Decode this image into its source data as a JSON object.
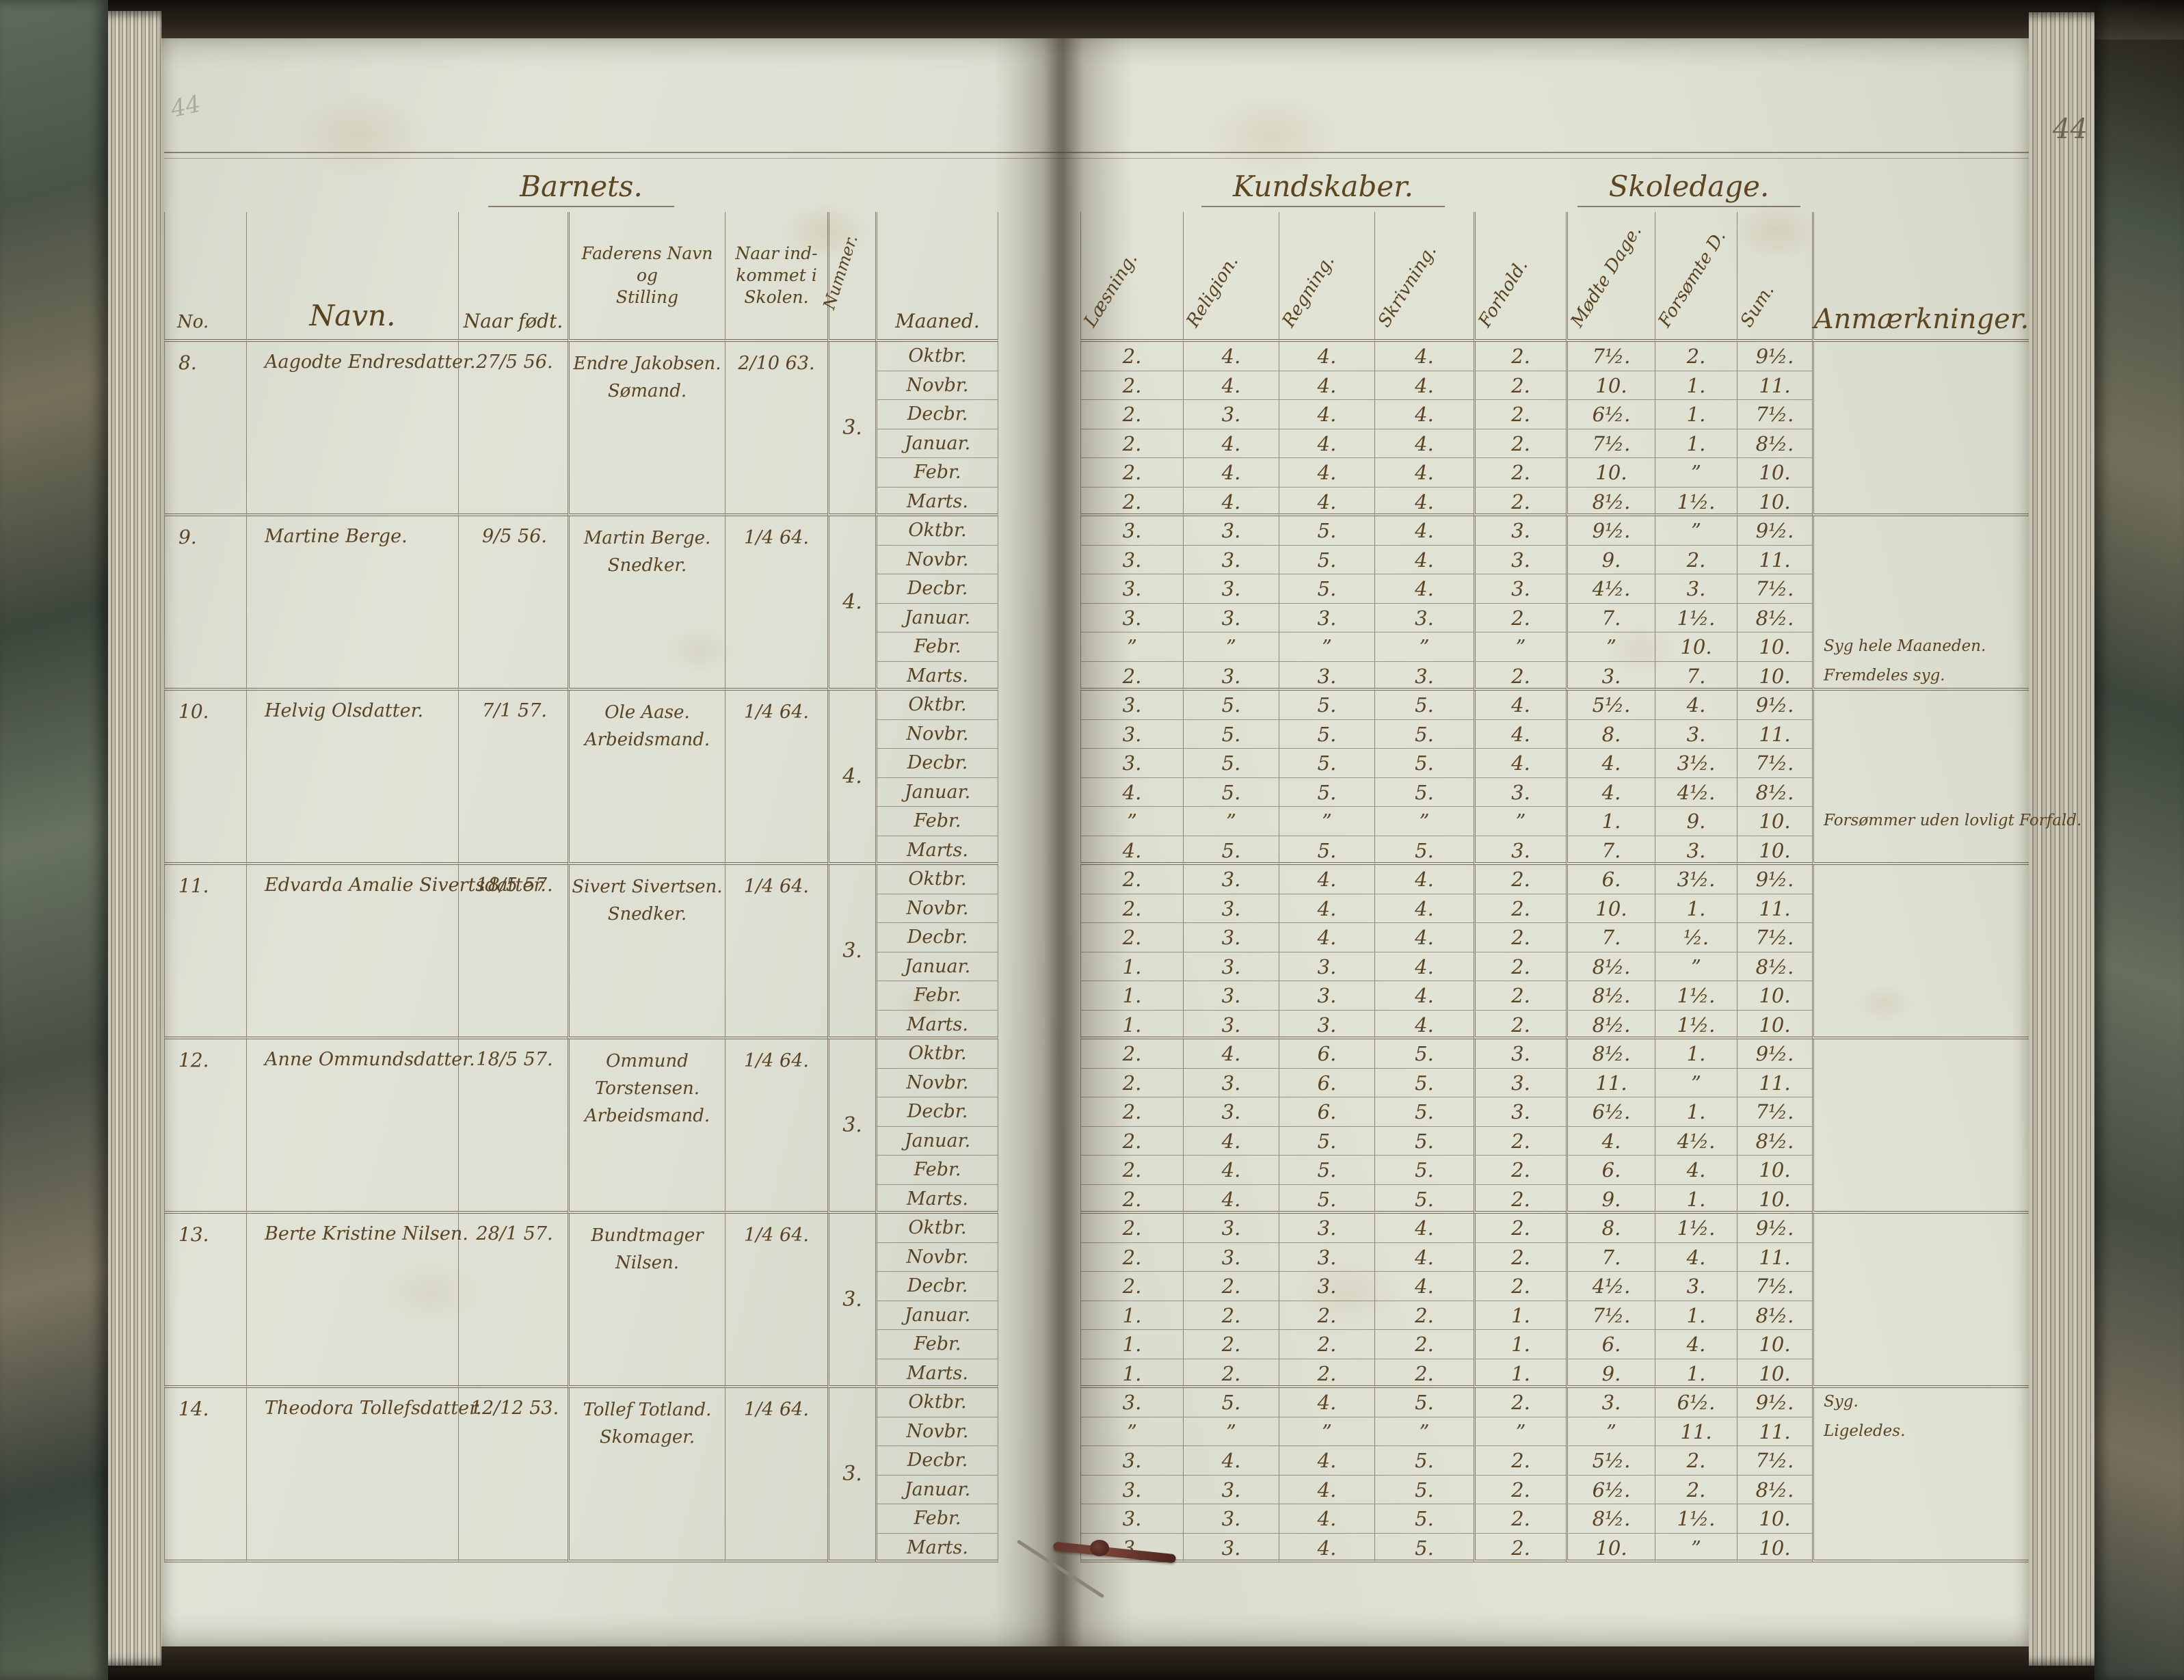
{
  "page": {
    "right_number": "44",
    "left_corner_mark": "44"
  },
  "headers": {
    "left_group": "Barnets.",
    "knowledge_group": "Kundskaber.",
    "schooldays_group": "Skoledage.",
    "remarks_title": "Anmærkninger.",
    "col_no": "No.",
    "col_name": "Navn.",
    "col_born": "Naar født.",
    "col_father_lines": [
      "Faderens Navn",
      "og",
      "Stilling"
    ],
    "col_admitted_lines": [
      "Naar ind-",
      "kommet i",
      "Skolen."
    ],
    "col_number": "Nummer.",
    "col_month": "Maaned.",
    "subjects": [
      "Læsning.",
      "Religion.",
      "Regning.",
      "Skrivning.",
      "Forhold."
    ],
    "schooldays": [
      "Mødte Dage.",
      "Forsømte D.",
      "Sum."
    ]
  },
  "months": [
    "Oktbr.",
    "Novbr.",
    "Decbr.",
    "Januar.",
    "Febr.",
    "Marts."
  ],
  "students": [
    {
      "no": "8.",
      "name": "Aagodte Endresdatter.",
      "born": "27/5 56.",
      "father": [
        "Endre Jakobsen.",
        "Sømand."
      ],
      "admitted": "2/10 63.",
      "number": "3.",
      "rows": [
        [
          "2.",
          "4.",
          "4.",
          "4.",
          "2.",
          "7½.",
          "2.",
          "9½."
        ],
        [
          "2.",
          "4.",
          "4.",
          "4.",
          "2.",
          "10.",
          "1.",
          "11."
        ],
        [
          "2.",
          "3.",
          "4.",
          "4.",
          "2.",
          "6½.",
          "1.",
          "7½."
        ],
        [
          "2.",
          "4.",
          "4.",
          "4.",
          "2.",
          "7½.",
          "1.",
          "8½."
        ],
        [
          "2.",
          "4.",
          "4.",
          "4.",
          "2.",
          "10.",
          "”",
          "10."
        ],
        [
          "2.",
          "4.",
          "4.",
          "4.",
          "2.",
          "8½.",
          "1½.",
          "10."
        ]
      ],
      "remarks": [
        "",
        "",
        "",
        "",
        "",
        ""
      ]
    },
    {
      "no": "9.",
      "name": "Martine Berge.",
      "born": "9/5 56.",
      "father": [
        "Martin Berge.",
        "Snedker."
      ],
      "admitted": "1/4 64.",
      "number": "4.",
      "rows": [
        [
          "3.",
          "3.",
          "5.",
          "4.",
          "3.",
          "9½.",
          "”",
          "9½."
        ],
        [
          "3.",
          "3.",
          "5.",
          "4.",
          "3.",
          "9.",
          "2.",
          "11."
        ],
        [
          "3.",
          "3.",
          "5.",
          "4.",
          "3.",
          "4½.",
          "3.",
          "7½."
        ],
        [
          "3.",
          "3.",
          "3.",
          "3.",
          "2.",
          "7.",
          "1½.",
          "8½."
        ],
        [
          "”",
          "”",
          "”",
          "”",
          "”",
          "”",
          "10.",
          "10."
        ],
        [
          "2.",
          "3.",
          "3.",
          "3.",
          "2.",
          "3.",
          "7.",
          "10."
        ]
      ],
      "remarks": [
        "",
        "",
        "",
        "",
        "Syg hele Maaneden.",
        "Fremdeles syg."
      ]
    },
    {
      "no": "10.",
      "name": "Helvig Olsdatter.",
      "born": "7/1 57.",
      "father": [
        "Ole Aase.",
        "Arbeidsmand."
      ],
      "admitted": "1/4 64.",
      "number": "4.",
      "rows": [
        [
          "3.",
          "5.",
          "5.",
          "5.",
          "4.",
          "5½.",
          "4.",
          "9½."
        ],
        [
          "3.",
          "5.",
          "5.",
          "5.",
          "4.",
          "8.",
          "3.",
          "11."
        ],
        [
          "3.",
          "5.",
          "5.",
          "5.",
          "4.",
          "4.",
          "3½.",
          "7½."
        ],
        [
          "4.",
          "5.",
          "5.",
          "5.",
          "3.",
          "4.",
          "4½.",
          "8½."
        ],
        [
          "”",
          "”",
          "”",
          "”",
          "”",
          "1.",
          "9.",
          "10."
        ],
        [
          "4.",
          "5.",
          "5.",
          "5.",
          "3.",
          "7.",
          "3.",
          "10."
        ]
      ],
      "remarks": [
        "",
        "",
        "",
        "",
        "Forsømmer uden lovligt Forfald.",
        ""
      ]
    },
    {
      "no": "11.",
      "name": "Edvarda Amalie Sivertsdatter.",
      "born": "18/5 57.",
      "father": [
        "Sivert Sivertsen.",
        "Snedker."
      ],
      "admitted": "1/4 64.",
      "number": "3.",
      "rows": [
        [
          "2.",
          "3.",
          "4.",
          "4.",
          "2.",
          "6.",
          "3½.",
          "9½."
        ],
        [
          "2.",
          "3.",
          "4.",
          "4.",
          "2.",
          "10.",
          "1.",
          "11."
        ],
        [
          "2.",
          "3.",
          "4.",
          "4.",
          "2.",
          "7.",
          "½.",
          "7½."
        ],
        [
          "1.",
          "3.",
          "3.",
          "4.",
          "2.",
          "8½.",
          "”",
          "8½."
        ],
        [
          "1.",
          "3.",
          "3.",
          "4.",
          "2.",
          "8½.",
          "1½.",
          "10."
        ],
        [
          "1.",
          "3.",
          "3.",
          "4.",
          "2.",
          "8½.",
          "1½.",
          "10."
        ]
      ],
      "remarks": [
        "",
        "",
        "",
        "",
        "",
        ""
      ]
    },
    {
      "no": "12.",
      "name": "Anne Ommundsdatter.",
      "born": "18/5 57.",
      "father": [
        "Ommund Torstensen.",
        "Arbeidsmand."
      ],
      "admitted": "1/4 64.",
      "number": "3.",
      "rows": [
        [
          "2.",
          "4.",
          "6.",
          "5.",
          "3.",
          "8½.",
          "1.",
          "9½."
        ],
        [
          "2.",
          "3.",
          "6.",
          "5.",
          "3.",
          "11.",
          "”",
          "11."
        ],
        [
          "2.",
          "3.",
          "6.",
          "5.",
          "3.",
          "6½.",
          "1.",
          "7½."
        ],
        [
          "2.",
          "4.",
          "5.",
          "5.",
          "2.",
          "4.",
          "4½.",
          "8½."
        ],
        [
          "2.",
          "4.",
          "5.",
          "5.",
          "2.",
          "6.",
          "4.",
          "10."
        ],
        [
          "2.",
          "4.",
          "5.",
          "5.",
          "2.",
          "9.",
          "1.",
          "10."
        ]
      ],
      "remarks": [
        "",
        "",
        "",
        "",
        "",
        ""
      ]
    },
    {
      "no": "13.",
      "name": "Berte Kristine Nilsen.",
      "born": "28/1 57.",
      "father": [
        "Bundtmager Nilsen.",
        ""
      ],
      "admitted": "1/4 64.",
      "number": "3.",
      "rows": [
        [
          "2.",
          "3.",
          "3.",
          "4.",
          "2.",
          "8.",
          "1½.",
          "9½."
        ],
        [
          "2.",
          "3.",
          "3.",
          "4.",
          "2.",
          "7.",
          "4.",
          "11."
        ],
        [
          "2.",
          "2.",
          "3.",
          "4.",
          "2.",
          "4½.",
          "3.",
          "7½."
        ],
        [
          "1.",
          "2.",
          "2.",
          "2.",
          "1.",
          "7½.",
          "1.",
          "8½."
        ],
        [
          "1.",
          "2.",
          "2.",
          "2.",
          "1.",
          "6.",
          "4.",
          "10."
        ],
        [
          "1.",
          "2.",
          "2.",
          "2.",
          "1.",
          "9.",
          "1.",
          "10."
        ]
      ],
      "remarks": [
        "",
        "",
        "",
        "",
        "",
        ""
      ]
    },
    {
      "no": "14.",
      "name": "Theodora Tollefsdatter.",
      "born": "12/12 53.",
      "father": [
        "Tollef Totland.",
        "Skomager."
      ],
      "admitted": "1/4 64.",
      "number": "3.",
      "rows": [
        [
          "3.",
          "5.",
          "4.",
          "5.",
          "2.",
          "3.",
          "6½.",
          "9½."
        ],
        [
          "”",
          "”",
          "”",
          "”",
          "”",
          "”",
          "11.",
          "11."
        ],
        [
          "3.",
          "4.",
          "4.",
          "5.",
          "2.",
          "5½.",
          "2.",
          "7½."
        ],
        [
          "3.",
          "3.",
          "4.",
          "5.",
          "2.",
          "6½.",
          "2.",
          "8½."
        ],
        [
          "3.",
          "3.",
          "4.",
          "5.",
          "2.",
          "8½.",
          "1½.",
          "10."
        ],
        [
          "3.",
          "3.",
          "4.",
          "5.",
          "2.",
          "10.",
          "”",
          "10."
        ]
      ],
      "remarks": [
        "Syg.",
        "Ligeledes.",
        "",
        "",
        "",
        ""
      ]
    }
  ]
}
